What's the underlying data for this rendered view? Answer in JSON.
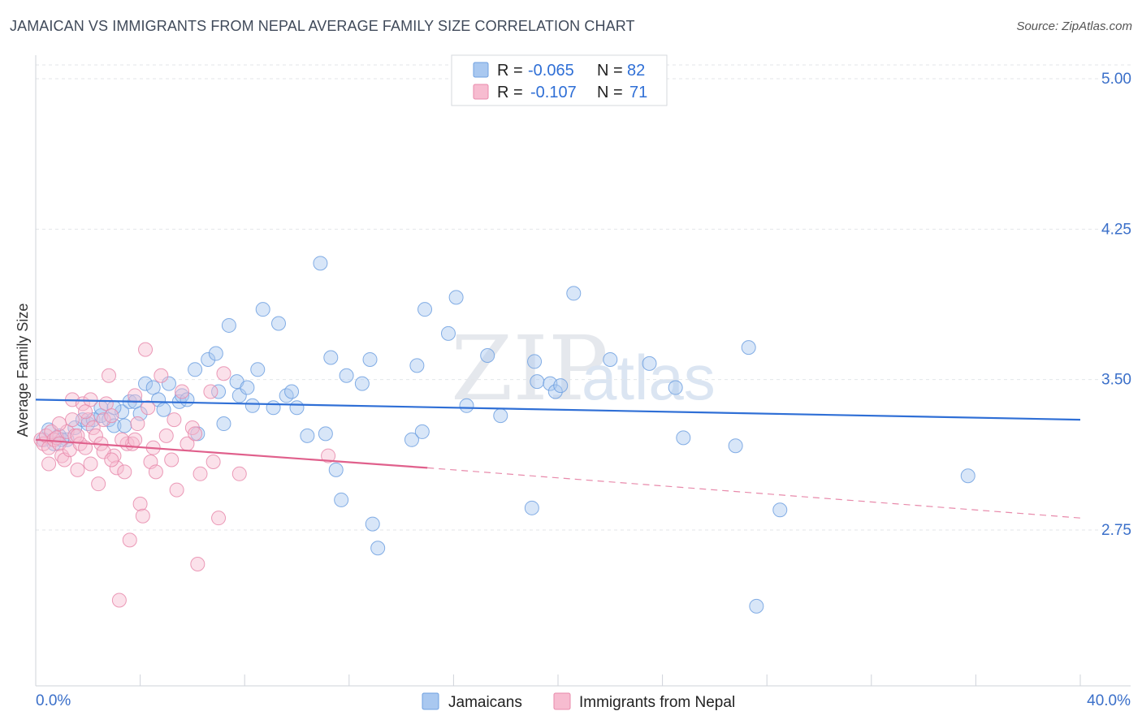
{
  "title": "JAMAICAN VS IMMIGRANTS FROM NEPAL AVERAGE FAMILY SIZE CORRELATION CHART",
  "source": "Source: ZipAtlas.com",
  "watermark": {
    "zip": "ZIP",
    "atlas": "atlas"
  },
  "legend": {
    "rows": [
      {
        "r_label": "R =",
        "r_value": "-0.065",
        "n_label": "N =",
        "n_value": "82",
        "color": "#a9c8f0",
        "stroke": "#6fa0e0"
      },
      {
        "r_label": "R =",
        "r_value": "-0.107",
        "n_label": "N =",
        "n_value": "71",
        "color": "#f7bcd0",
        "stroke": "#e88aab"
      }
    ]
  },
  "bottom_legend": [
    {
      "label": "Jamaicans",
      "color": "#a9c8f0",
      "stroke": "#6fa0e0"
    },
    {
      "label": "Immigrants from Nepal",
      "color": "#f7bcd0",
      "stroke": "#e88aab"
    }
  ],
  "chart_data": {
    "type": "scatter",
    "title": "JAMAICAN VS IMMIGRANTS FROM NEPAL AVERAGE FAMILY SIZE CORRELATION CHART",
    "xlabel": "",
    "ylabel": "Average Family Size",
    "xlim": [
      0,
      40
    ],
    "ylim": [
      2.2,
      5.2
    ],
    "x_tick_labels": [
      "0.0%",
      "40.0%"
    ],
    "y_ticks": [
      2.75,
      3.5,
      4.25,
      5.0
    ],
    "y_tick_labels": [
      "2.75",
      "3.50",
      "4.25",
      "5.00"
    ],
    "grid": true,
    "legend_position": "top-center",
    "series": [
      {
        "name": "Jamaicans",
        "color": "#6fa0e0",
        "fill": "#a9c8f0",
        "trend": {
          "x": [
            0,
            40
          ],
          "y": [
            3.4,
            3.3
          ]
        },
        "points": [
          [
            0.3,
            3.2
          ],
          [
            0.5,
            3.25
          ],
          [
            0.7,
            3.18
          ],
          [
            0.9,
            3.22
          ],
          [
            1.2,
            3.2
          ],
          [
            1.5,
            3.26
          ],
          [
            1.8,
            3.3
          ],
          [
            2.0,
            3.28
          ],
          [
            2.2,
            3.3
          ],
          [
            2.5,
            3.32
          ],
          [
            2.5,
            3.36
          ],
          [
            2.8,
            3.3
          ],
          [
            3.0,
            3.27
          ],
          [
            3.3,
            3.34
          ],
          [
            3.4,
            3.27
          ],
          [
            3.6,
            3.39
          ],
          [
            3.8,
            3.39
          ],
          [
            4.0,
            3.33
          ],
          [
            4.2,
            3.48
          ],
          [
            4.5,
            3.46
          ],
          [
            4.7,
            3.4
          ],
          [
            4.9,
            3.35
          ],
          [
            5.1,
            3.48
          ],
          [
            5.5,
            3.39
          ],
          [
            5.6,
            3.42
          ],
          [
            5.8,
            3.4
          ],
          [
            6.1,
            3.55
          ],
          [
            6.2,
            3.23
          ],
          [
            6.6,
            3.6
          ],
          [
            6.9,
            3.63
          ],
          [
            7.0,
            3.44
          ],
          [
            7.2,
            3.28
          ],
          [
            7.4,
            3.77
          ],
          [
            7.7,
            3.49
          ],
          [
            7.8,
            3.42
          ],
          [
            8.1,
            3.46
          ],
          [
            8.3,
            3.37
          ],
          [
            8.5,
            3.55
          ],
          [
            8.7,
            3.85
          ],
          [
            9.1,
            3.36
          ],
          [
            9.3,
            3.78
          ],
          [
            9.6,
            3.42
          ],
          [
            9.8,
            3.44
          ],
          [
            10.0,
            3.36
          ],
          [
            10.4,
            3.22
          ],
          [
            10.9,
            4.08
          ],
          [
            11.1,
            3.23
          ],
          [
            11.3,
            3.61
          ],
          [
            11.5,
            3.05
          ],
          [
            11.7,
            2.9
          ],
          [
            11.9,
            3.52
          ],
          [
            12.5,
            3.48
          ],
          [
            12.8,
            3.6
          ],
          [
            12.9,
            2.78
          ],
          [
            13.1,
            2.66
          ],
          [
            14.4,
            3.2
          ],
          [
            14.6,
            3.57
          ],
          [
            14.8,
            3.24
          ],
          [
            14.9,
            3.85
          ],
          [
            15.8,
            3.73
          ],
          [
            16.1,
            3.91
          ],
          [
            16.5,
            3.37
          ],
          [
            17.3,
            3.62
          ],
          [
            17.8,
            3.32
          ],
          [
            19.0,
            2.86
          ],
          [
            19.1,
            3.59
          ],
          [
            19.2,
            3.49
          ],
          [
            19.7,
            3.48
          ],
          [
            19.9,
            3.44
          ],
          [
            20.1,
            3.47
          ],
          [
            20.6,
            3.93
          ],
          [
            22.0,
            3.6
          ],
          [
            23.5,
            3.58
          ],
          [
            24.5,
            3.46
          ],
          [
            24.8,
            3.21
          ],
          [
            26.8,
            3.17
          ],
          [
            27.3,
            3.66
          ],
          [
            27.6,
            2.37
          ],
          [
            28.5,
            2.85
          ],
          [
            35.7,
            3.02
          ],
          [
            1.0,
            3.2
          ],
          [
            3.0,
            3.36
          ]
        ]
      },
      {
        "name": "Immigrants from Nepal",
        "color": "#e88aab",
        "fill": "#f7bcd0",
        "trend": {
          "x": [
            0,
            15
          ],
          "y": [
            3.2,
            3.06
          ]
        },
        "trend_dashed": {
          "x": [
            15,
            40
          ],
          "y": [
            3.06,
            2.81
          ]
        },
        "points": [
          [
            0.2,
            3.2
          ],
          [
            0.3,
            3.18
          ],
          [
            0.4,
            3.22
          ],
          [
            0.5,
            3.16
          ],
          [
            0.6,
            3.24
          ],
          [
            0.7,
            3.2
          ],
          [
            0.8,
            3.21
          ],
          [
            0.9,
            3.18
          ],
          [
            1.0,
            3.12
          ],
          [
            1.1,
            3.1
          ],
          [
            1.2,
            3.24
          ],
          [
            1.3,
            3.15
          ],
          [
            1.4,
            3.3
          ],
          [
            1.4,
            3.4
          ],
          [
            1.5,
            3.22
          ],
          [
            1.6,
            3.05
          ],
          [
            1.7,
            3.18
          ],
          [
            1.8,
            3.38
          ],
          [
            1.9,
            3.16
          ],
          [
            2.0,
            3.3
          ],
          [
            2.1,
            3.4
          ],
          [
            2.2,
            3.26
          ],
          [
            2.3,
            3.22
          ],
          [
            2.4,
            2.98
          ],
          [
            2.5,
            3.18
          ],
          [
            2.6,
            3.3
          ],
          [
            2.7,
            3.38
          ],
          [
            2.8,
            3.52
          ],
          [
            2.9,
            3.32
          ],
          [
            3.0,
            3.12
          ],
          [
            3.1,
            3.06
          ],
          [
            3.2,
            2.4
          ],
          [
            3.4,
            3.04
          ],
          [
            3.5,
            3.18
          ],
          [
            3.6,
            2.7
          ],
          [
            3.7,
            3.18
          ],
          [
            3.8,
            3.42
          ],
          [
            3.9,
            3.28
          ],
          [
            4.0,
            2.88
          ],
          [
            4.1,
            2.82
          ],
          [
            4.2,
            3.65
          ],
          [
            4.4,
            3.09
          ],
          [
            4.5,
            3.16
          ],
          [
            4.6,
            3.04
          ],
          [
            4.8,
            3.52
          ],
          [
            5.0,
            3.22
          ],
          [
            5.2,
            3.1
          ],
          [
            5.4,
            2.95
          ],
          [
            5.6,
            3.44
          ],
          [
            5.8,
            3.18
          ],
          [
            6.0,
            3.26
          ],
          [
            6.2,
            2.58
          ],
          [
            6.3,
            3.03
          ],
          [
            6.7,
            3.44
          ],
          [
            6.8,
            3.09
          ],
          [
            7.0,
            2.81
          ],
          [
            7.2,
            3.53
          ],
          [
            7.8,
            3.03
          ],
          [
            11.2,
            3.12
          ],
          [
            0.9,
            3.28
          ],
          [
            1.6,
            3.22
          ],
          [
            2.1,
            3.08
          ],
          [
            2.6,
            3.14
          ],
          [
            3.3,
            3.2
          ],
          [
            4.3,
            3.36
          ],
          [
            5.3,
            3.3
          ],
          [
            6.1,
            3.23
          ],
          [
            0.5,
            3.08
          ],
          [
            1.9,
            3.34
          ],
          [
            2.9,
            3.1
          ],
          [
            3.8,
            3.2
          ]
        ]
      }
    ]
  }
}
